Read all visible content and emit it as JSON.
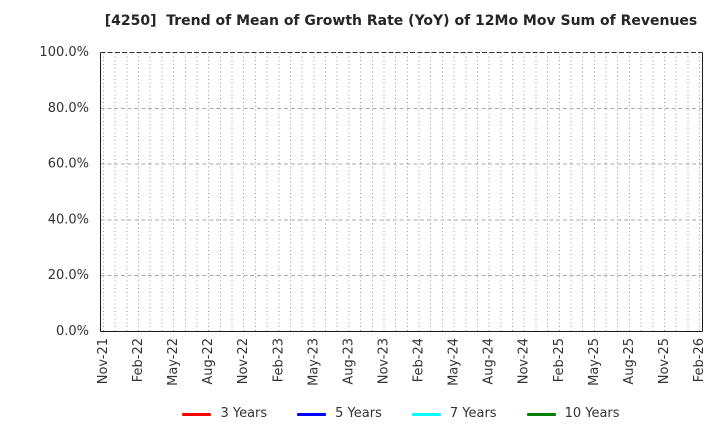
{
  "chart_data": {
    "type": "line",
    "title": "[4250]  Trend of Mean of Growth Rate (YoY) of 12Mo Mov Sum of Revenues",
    "xlabel": "",
    "ylabel": "",
    "ylim": [
      0,
      100
    ],
    "grid": true,
    "legend_position": "bottom",
    "y_axis": {
      "tick_values": [
        0,
        20,
        40,
        60,
        80,
        100
      ],
      "tick_labels": [
        "0.0%",
        "20.0%",
        "40.0%",
        "60.0%",
        "80.0%",
        "100.0%"
      ]
    },
    "x_axis": {
      "start": "Nov-21",
      "end": "Feb-26",
      "months_total": 52,
      "label_every": 3,
      "tick_labels": [
        "Nov-21",
        "Feb-22",
        "May-22",
        "Aug-22",
        "Nov-22",
        "Feb-23",
        "May-23",
        "Aug-23",
        "Nov-23",
        "Feb-24",
        "May-24",
        "Aug-24",
        "Nov-24",
        "Feb-25",
        "May-25",
        "Aug-25",
        "Nov-25",
        "Feb-26"
      ]
    },
    "series": [
      {
        "name": "3 Years",
        "color": "#ff0000",
        "values": []
      },
      {
        "name": "5 Years",
        "color": "#0000ff",
        "values": []
      },
      {
        "name": "7 Years",
        "color": "#00ffff",
        "values": []
      },
      {
        "name": "10 Years",
        "color": "#008000",
        "values": []
      }
    ],
    "colors": {
      "spine": "#1a1a1a",
      "top_spine": "#333333",
      "grid_vertical": "#999999",
      "grid_horizontal": "#aaaaaa",
      "tick_text": "#333333",
      "title_text": "#262626"
    }
  }
}
